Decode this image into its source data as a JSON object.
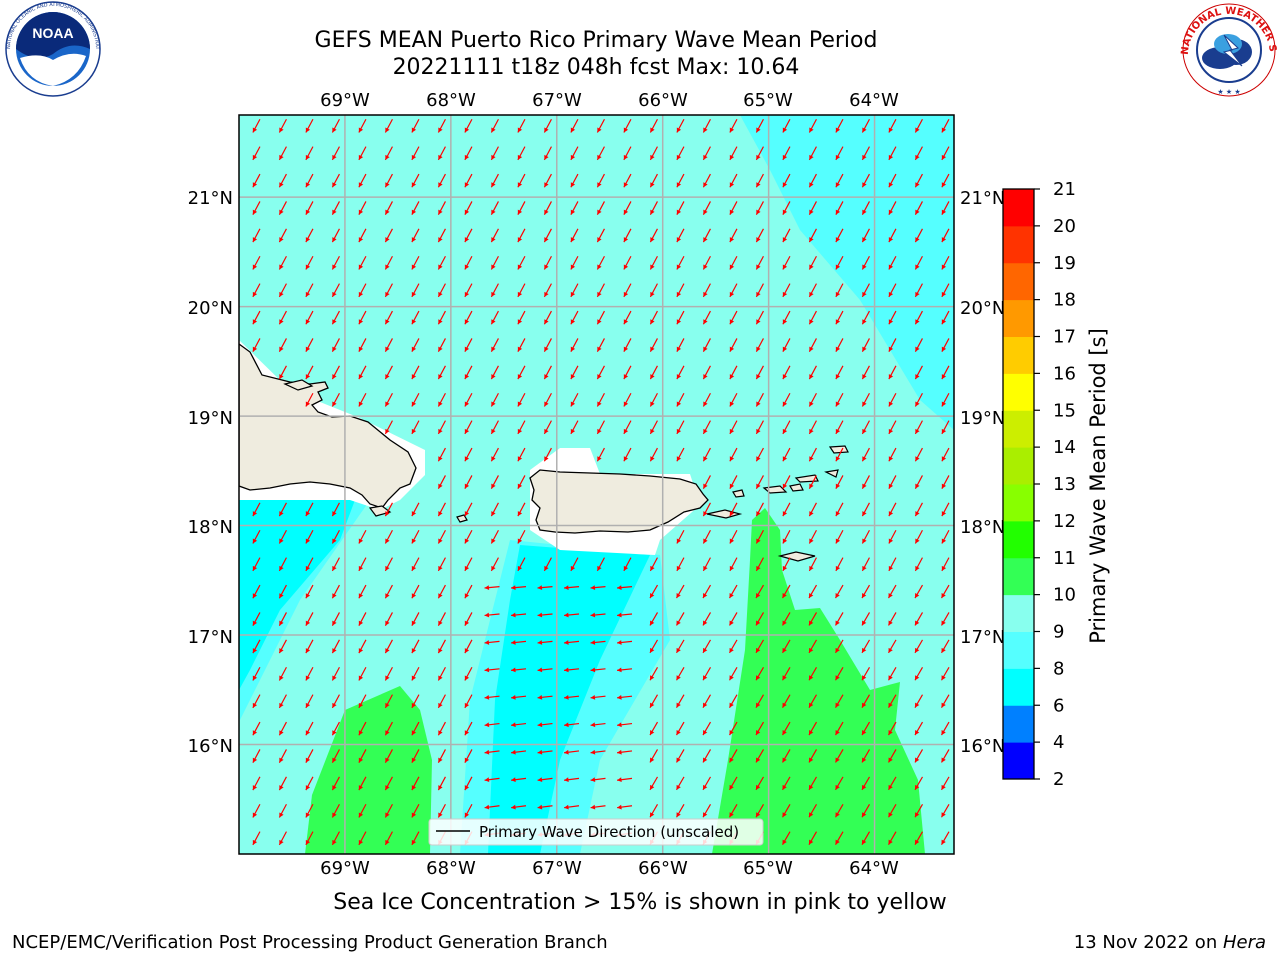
{
  "title": {
    "line1": "GEFS MEAN Puerto Rico Primary Wave Mean Period",
    "line2": "20221111 t18z 048h fcst   Max: 10.64"
  },
  "axes": {
    "lon_labels": [
      "69°W",
      "68°W",
      "67°W",
      "66°W",
      "65°W",
      "64°W"
    ],
    "lat_labels": [
      "21°N",
      "20°N",
      "19°N",
      "18°N",
      "17°N",
      "16°N"
    ]
  },
  "legend": {
    "label": "Primary Wave Direction (unscaled)"
  },
  "colorbar": {
    "label": "Primary Wave Mean Period [s]",
    "ticks": [
      "2",
      "4",
      "6",
      "8",
      "9",
      "10",
      "11",
      "12",
      "13",
      "14",
      "15",
      "16",
      "17",
      "18",
      "19",
      "20",
      "21"
    ],
    "colors": [
      "#0000ff",
      "#0080ff",
      "#00ffff",
      "#55ffff",
      "#88ffee",
      "#33ff55",
      "#22ff00",
      "#88ff00",
      "#aaee00",
      "#ccee00",
      "#ffff00",
      "#ffcc00",
      "#ff9900",
      "#ff6600",
      "#ff3300",
      "#ff0000"
    ]
  },
  "chart_data": {
    "type": "map",
    "title": "GEFS MEAN Puerto Rico Primary Wave Mean Period",
    "subtitle": "20221111 t18z 048h fcst   Max: 10.64",
    "lon_range": [
      -70.0,
      -63.25
    ],
    "lat_range": [
      15.0,
      21.75
    ],
    "max_value": 10.64,
    "units": "s",
    "vector_field": "Primary Wave Direction (unscaled)"
  },
  "caption": "Sea Ice Concentration > 15% is shown in pink to yellow",
  "footer": {
    "left": "NCEP/EMC/Verification Post Processing Product Generation Branch",
    "date": "13 Nov 2022 on ",
    "host": "Hera"
  },
  "logos": {
    "left": "NOAA",
    "left_ring": "NATIONAL OCEANIC AND ATMOSPHERIC ADMINISTRATION · U.S. DEPARTMENT OF COMMERCE",
    "right": "NATIONAL WEATHER SERVICE"
  }
}
